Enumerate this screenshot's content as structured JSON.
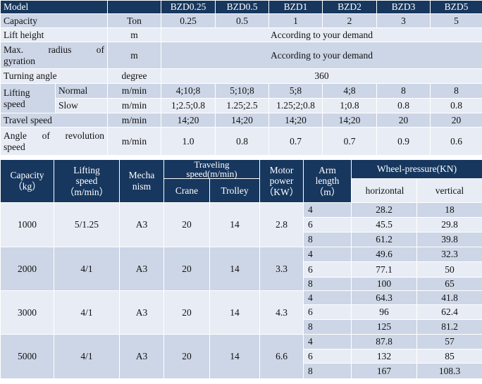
{
  "spec": {
    "header": [
      "Model",
      "",
      "BZD0.25",
      "BZD0.5",
      "BZD1",
      "BZD2",
      "BZD3",
      "BZD5"
    ],
    "capacity": {
      "label": "Capacity",
      "unit": "Ton",
      "values": [
        "0.25",
        "0.5",
        "1",
        "2",
        "3",
        "5"
      ]
    },
    "lift_height": {
      "label": "Lift height",
      "unit": "m",
      "value": "According to your demand"
    },
    "radius": {
      "label_line1": "Max. radius of",
      "label_line2": "gyration",
      "unit": "m",
      "value": "According to your demand"
    },
    "turning": {
      "label": "Turning angle",
      "unit": "degree",
      "value": "360"
    },
    "lifting": {
      "label_line1": "Lifting",
      "label_line2": "speed",
      "normal": {
        "label": "Normal",
        "unit": "m/min",
        "values": [
          "4;10;8",
          "5;10;8",
          "5;8",
          "4;8",
          "8",
          "8"
        ]
      },
      "slow": {
        "label": "Slow",
        "unit": "m/min",
        "values": [
          "1;2.5;0.8",
          "1.25;2.5",
          "1.25;2;0.8",
          "1;0.8",
          "0.8",
          "0.8"
        ]
      }
    },
    "travel": {
      "label": "Travel speed",
      "unit": "m/min",
      "values": [
        "14;20",
        "14;20",
        "14;20",
        "14;20",
        "20",
        "20"
      ]
    },
    "revolution": {
      "label_line1": "Angle of revolution",
      "label_line2": "speed",
      "unit": "m/min",
      "values": [
        "1.0",
        "0.8",
        "0.7",
        "0.7",
        "0.9",
        "0.6"
      ]
    }
  },
  "details": {
    "headers": {
      "capacity": [
        "Capacity",
        "（kg）"
      ],
      "lifting": [
        "Lifting",
        "speed",
        "（m/min）"
      ],
      "mechanism": [
        "Mecha",
        "nism"
      ],
      "traveling": [
        "Traveling",
        "speed(m/min)"
      ],
      "crane": "Crane",
      "trolley": "Trolley",
      "motor": [
        "Motor",
        "power",
        "（KW）"
      ],
      "arm": [
        "Arm",
        "length",
        "（m）"
      ],
      "wheel": "Wheel-pressure(KN)",
      "horizontal": "horizontal",
      "vertical": "vertical"
    },
    "groups": [
      {
        "capacity": "1000",
        "lifting": "5/1.25",
        "mechanism": "A3",
        "crane": "20",
        "trolley": "14",
        "motor": "2.8",
        "rows": [
          {
            "arm": "4",
            "h": "28.2",
            "v": "18"
          },
          {
            "arm": "6",
            "h": "45.5",
            "v": "29.8"
          },
          {
            "arm": "8",
            "h": "61.2",
            "v": "39.8"
          }
        ]
      },
      {
        "capacity": "2000",
        "lifting": "4/1",
        "mechanism": "A3",
        "crane": "20",
        "trolley": "14",
        "motor": "3.3",
        "rows": [
          {
            "arm": "4",
            "h": "49.6",
            "v": "32.3"
          },
          {
            "arm": "6",
            "h": "77.1",
            "v": "50"
          },
          {
            "arm": "8",
            "h": "100",
            "v": "65"
          }
        ]
      },
      {
        "capacity": "3000",
        "lifting": "4/1",
        "mechanism": "A3",
        "crane": "20",
        "trolley": "14",
        "motor": "4.3",
        "rows": [
          {
            "arm": "4",
            "h": "64.3",
            "v": "41.8"
          },
          {
            "arm": "6",
            "h": "96",
            "v": "62.4"
          },
          {
            "arm": "8",
            "h": "125",
            "v": "81.2"
          }
        ]
      },
      {
        "capacity": "5000",
        "lifting": "4/1",
        "mechanism": "A3",
        "crane": "20",
        "trolley": "14",
        "motor": "6.6",
        "rows": [
          {
            "arm": "4",
            "h": "87.8",
            "v": "57"
          },
          {
            "arm": "6",
            "h": "132",
            "v": "85"
          },
          {
            "arm": "8",
            "h": "167",
            "v": "108.3"
          }
        ]
      }
    ]
  }
}
